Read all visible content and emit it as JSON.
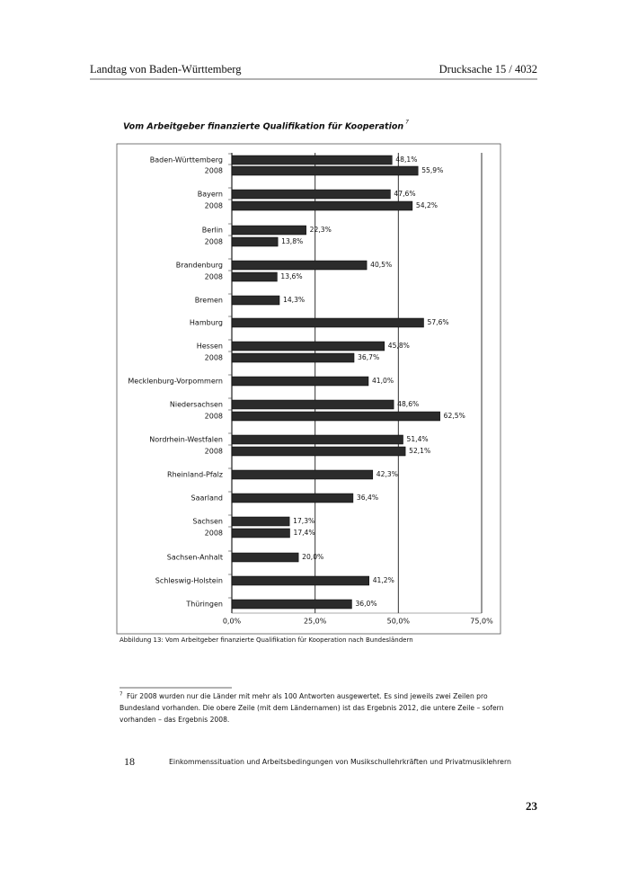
{
  "header": {
    "left": "Landtag von Baden-Württemberg",
    "right": "Drucksache 15 / 4032"
  },
  "chart_data": {
    "type": "bar",
    "orientation": "horizontal",
    "title": "Vom Arbeitgeber finanzierte Qualifikation für Kooperation",
    "title_note": "7",
    "categories": [
      "Baden-Württemberg",
      "2008",
      "Bayern",
      "2008",
      "Berlin",
      "2008",
      "Brandenburg",
      "2008",
      "Bremen",
      "Hamburg",
      "Hessen",
      "2008",
      "Mecklenburg-Vorpommern",
      "Niedersachsen",
      "2008",
      "Nordrhein-Westfalen",
      "2008",
      "Rheinland-Pfalz",
      "Saarland",
      "Sachsen",
      "2008",
      "Sachsen-Anhalt",
      "Schleswig-Holstein",
      "Thüringen"
    ],
    "values": [
      48.1,
      55.9,
      47.6,
      54.2,
      22.3,
      13.8,
      40.5,
      13.6,
      14.3,
      57.6,
      45.8,
      36.7,
      41.0,
      48.6,
      62.5,
      51.4,
      52.1,
      42.3,
      36.4,
      17.3,
      17.4,
      20.0,
      41.2,
      36.0
    ],
    "value_labels": [
      "48,1%",
      "55,9%",
      "47,6%",
      "54,2%",
      "22,3%",
      "13,8%",
      "40,5%",
      "13,6%",
      "14,3%",
      "57,6%",
      "45,8%",
      "36,7%",
      "41,0%",
      "48,6%",
      "62,5%",
      "51,4%",
      "52,1%",
      "42,3%",
      "36,4%",
      "17,3%",
      "17,4%",
      "20,0%",
      "41,2%",
      "36,0%"
    ],
    "color": "#2b2b2b",
    "xlim": [
      0,
      75
    ],
    "xticks": [
      {
        "value": 0,
        "label": "0,0%"
      },
      {
        "value": 25,
        "label": "25,0%"
      },
      {
        "value": 50,
        "label": "50,0%"
      },
      {
        "value": 75,
        "label": "75,0%"
      }
    ],
    "grid": true
  },
  "caption": "Abbildung 13: Vom Arbeitgeber finanzierte Qualifikation für Kooperation nach Bundesländern",
  "footnote": {
    "marker": "7",
    "lines": [
      "Für 2008 wurden nur die Länder mit mehr als 100 Antworten ausgewertet. Es sind jeweils zwei Zeilen pro",
      "Bundesland vorhanden. Die obere Zeile (mit dem Ländernamen) ist das Ergebnis 2012, die untere Zeile – sofern",
      "vorhanden – das Ergebnis 2008."
    ]
  },
  "footer": {
    "page": "18",
    "text": "Einkommenssituation und Arbeitsbedingungen von Musikschullehrkräften und Privatmusiklehrern"
  },
  "page_number": "23"
}
